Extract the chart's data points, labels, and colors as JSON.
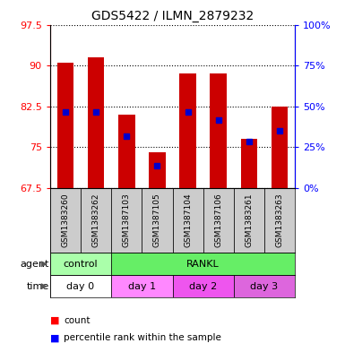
{
  "title": "GDS5422 / ILMN_2879232",
  "samples": [
    "GSM1383260",
    "GSM1383262",
    "GSM1387103",
    "GSM1387105",
    "GSM1387104",
    "GSM1387106",
    "GSM1383261",
    "GSM1383263"
  ],
  "counts": [
    90.5,
    91.5,
    81.0,
    74.0,
    88.5,
    88.5,
    76.5,
    82.5
  ],
  "percentile_values": [
    81.5,
    81.5,
    77.0,
    71.5,
    81.5,
    80.0,
    76.0,
    78.0
  ],
  "ymin": 67.5,
  "ymax": 97.5,
  "yticks_left": [
    67.5,
    75.0,
    82.5,
    90.0,
    97.5
  ],
  "yticks_right_pct": [
    0,
    25,
    50,
    75,
    100
  ],
  "bar_color": "#cc0000",
  "dot_color": "#0000cc",
  "agent_groups": [
    {
      "label": "control",
      "start": 0,
      "end": 2,
      "color": "#aaffaa"
    },
    {
      "label": "RANKL",
      "start": 2,
      "end": 8,
      "color": "#66ee66"
    }
  ],
  "time_groups": [
    {
      "label": "day 0",
      "start": 0,
      "end": 2,
      "color": "#ffffff"
    },
    {
      "label": "day 1",
      "start": 2,
      "end": 4,
      "color": "#ff88ff"
    },
    {
      "label": "day 2",
      "start": 4,
      "end": 6,
      "color": "#ee55ee"
    },
    {
      "label": "day 3",
      "start": 6,
      "end": 8,
      "color": "#dd66dd"
    }
  ],
  "background_color": "#ffffff",
  "bar_width": 0.55,
  "dot_size": 5,
  "label_row_bg": "#cccccc"
}
